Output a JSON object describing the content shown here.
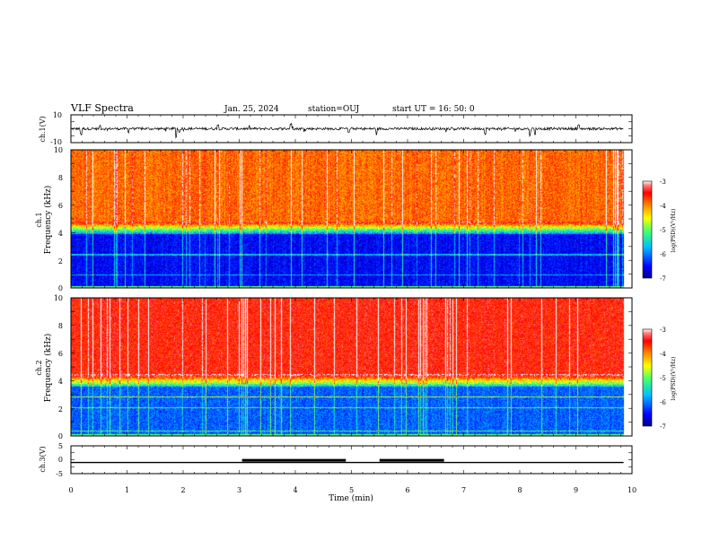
{
  "header": {
    "title": "VLF Spectra",
    "date": "Jan. 25, 2024",
    "station": "station=OUJ",
    "start": "start UT = 16: 50: 0"
  },
  "chart_data": [
    {
      "type": "line",
      "name": "ch1-waveform",
      "ylabel": "ch.1(V)",
      "ylim": [
        -10,
        10
      ],
      "yticks": [
        "10",
        "-10"
      ],
      "xlim": [
        0,
        10
      ],
      "trace_end_min": 9.85,
      "baseline_v": 0,
      "spikes": [
        {
          "t": 0.18,
          "v": -5.0
        },
        {
          "t": 0.52,
          "v": 2.8
        },
        {
          "t": 1.02,
          "v": -3.8
        },
        {
          "t": 1.88,
          "v": -7.2
        },
        {
          "t": 1.93,
          "v": -4.0
        },
        {
          "t": 2.62,
          "v": 3.5
        },
        {
          "t": 3.92,
          "v": 4.6
        },
        {
          "t": 4.95,
          "v": -3.2
        },
        {
          "t": 5.45,
          "v": -4.8
        },
        {
          "t": 7.38,
          "v": -4.6
        },
        {
          "t": 8.18,
          "v": -6.8
        },
        {
          "t": 8.27,
          "v": -6.5
        },
        {
          "t": 9.05,
          "v": 3.0
        }
      ]
    },
    {
      "type": "heatmap",
      "name": "ch1-spectrogram",
      "ylabel_top": "ch.1",
      "ylabel": "Frequency (kHz)",
      "ylim": [
        0,
        10
      ],
      "yticks": [
        "0",
        "2",
        "4",
        "6",
        "8",
        "10"
      ],
      "xlim": [
        0,
        10
      ],
      "data_end_min": 9.85,
      "low_band_top_khz": 4.3,
      "colorbar": {
        "label": "log(PSD)(V²/Hz)",
        "ticks": [
          "-3",
          "-4",
          "-5",
          "-6",
          "-7"
        ],
        "range": [
          -7,
          -3
        ]
      }
    },
    {
      "type": "heatmap",
      "name": "ch2-spectrogram",
      "ylabel_top": "ch.2",
      "ylabel": "Frequency (kHz)",
      "ylim": [
        0,
        10
      ],
      "yticks": [
        "0",
        "2",
        "4",
        "6",
        "8",
        "10"
      ],
      "xlim": [
        0,
        10
      ],
      "data_end_min": 9.85,
      "low_band_top_khz": 4.0,
      "colorbar": {
        "label": "log(PSD)(V²/Hz)",
        "ticks": [
          "-3",
          "-4",
          "-5",
          "-6",
          "-7"
        ],
        "range": [
          -7,
          -3
        ]
      }
    },
    {
      "type": "line",
      "name": "ch3-level",
      "ylabel": "ch.3(V)",
      "ylim": [
        -5,
        5
      ],
      "yticks": [
        "5",
        "0",
        "-5"
      ],
      "xlim": [
        0,
        10
      ],
      "trace_end_min": 9.85,
      "level_v": -1,
      "high_segments": [
        [
          3.05,
          4.9
        ],
        [
          5.5,
          6.65
        ]
      ],
      "xlabel": "Time (min)",
      "xticks": [
        "0",
        "1",
        "2",
        "3",
        "4",
        "5",
        "6",
        "7",
        "8",
        "9",
        "10"
      ]
    }
  ],
  "colors": {
    "colormap": [
      "#00008b",
      "#0000ff",
      "#00c0ff",
      "#40ff70",
      "#ffff00",
      "#ff8000",
      "#ff0000",
      "#ff8080",
      "#ffffff"
    ],
    "axis": "#000000",
    "background": "#ffffff"
  }
}
